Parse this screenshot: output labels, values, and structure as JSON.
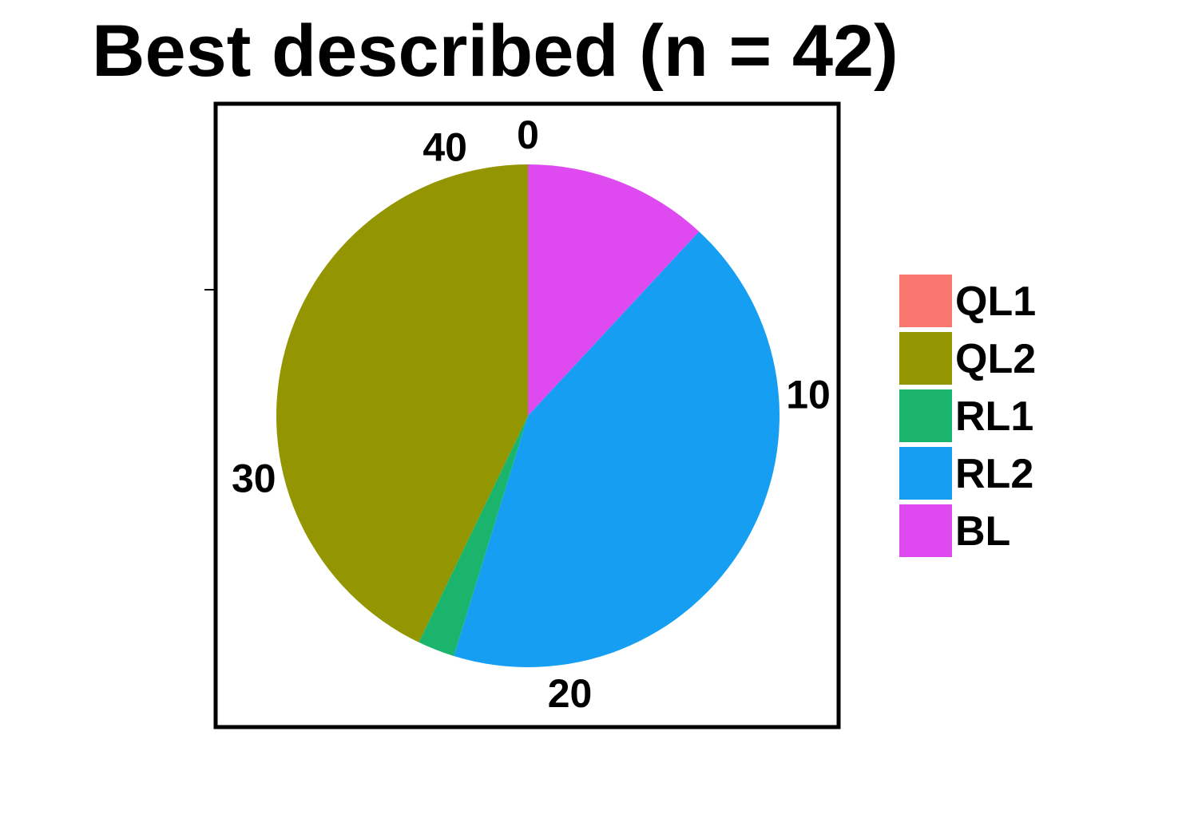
{
  "chart_data": {
    "type": "pie",
    "title": "Best described (n = 42)",
    "total": 42,
    "direction": "clockwise",
    "start": "top",
    "categories": [
      "QL1",
      "QL2",
      "RL1",
      "RL2",
      "BL"
    ],
    "values": [
      0,
      18,
      1,
      18,
      5
    ],
    "colors": [
      "#F8766D",
      "#939600",
      "#1BB46D",
      "#169FF2",
      "#DE4AF0"
    ],
    "slice_order": [
      "BL",
      "RL2",
      "RL1",
      "QL2",
      "QL1"
    ],
    "ticks": [
      0,
      10,
      20,
      30,
      40
    ],
    "legend_position": "right",
    "panel_border": true
  }
}
